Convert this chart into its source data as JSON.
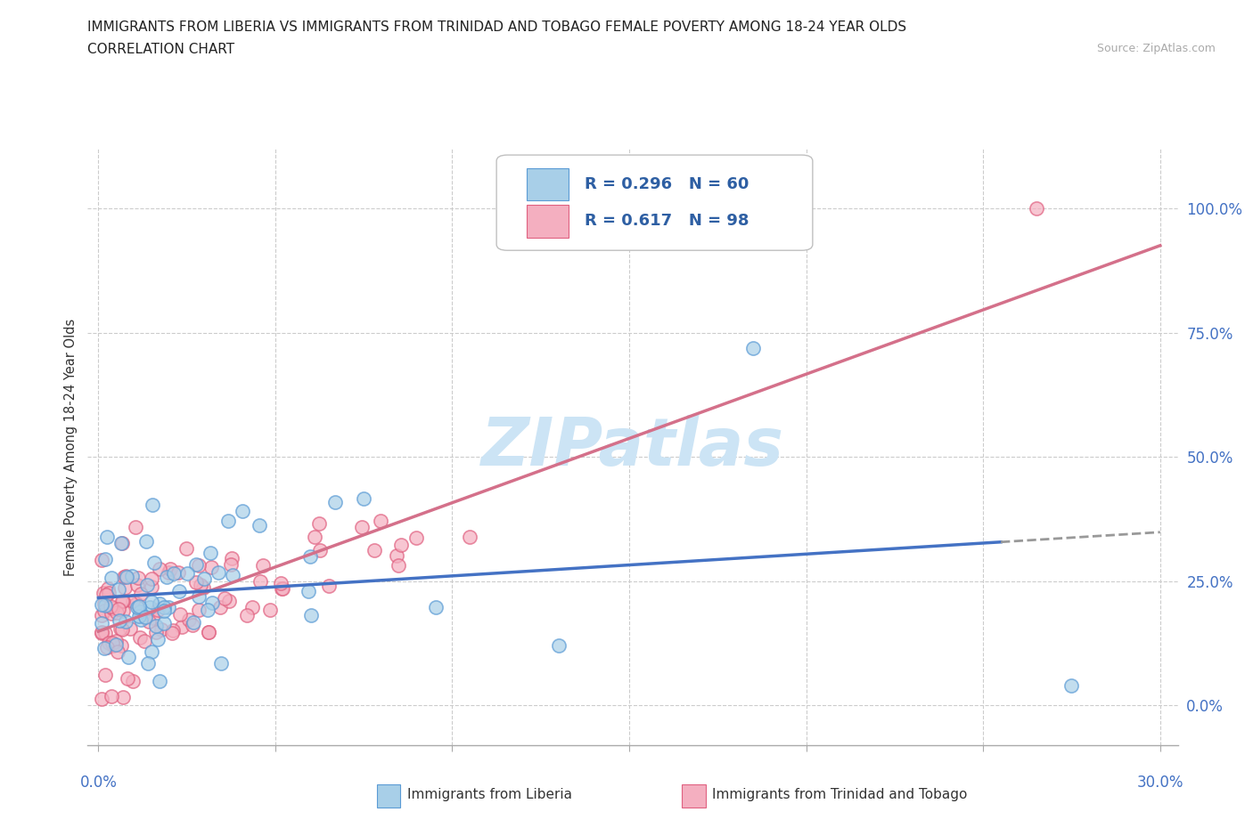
{
  "title_line1": "IMMIGRANTS FROM LIBERIA VS IMMIGRANTS FROM TRINIDAD AND TOBAGO FEMALE POVERTY AMONG 18-24 YEAR OLDS",
  "title_line2": "CORRELATION CHART",
  "source": "Source: ZipAtlas.com",
  "ylabel": "Female Poverty Among 18-24 Year Olds",
  "liberia_color": "#a8cfe8",
  "liberia_edge": "#5b9bd5",
  "trinidad_color": "#f4afc0",
  "trinidad_edge": "#e06080",
  "liberia_line_color": "#4472c4",
  "trinidad_line_color": "#d4708a",
  "legend_text_color": "#2e5fa3",
  "watermark_color": "#cce4f5",
  "grid_color": "#cccccc",
  "axis_label_color": "#4472c4",
  "liberia_R": 0.296,
  "liberia_N": 60,
  "trinidad_R": 0.617,
  "trinidad_N": 98,
  "xlim": [
    -0.003,
    0.305
  ],
  "ylim": [
    -0.08,
    1.12
  ],
  "yticks": [
    0.0,
    0.25,
    0.5,
    0.75,
    1.0
  ],
  "yticklabels": [
    "0.0%",
    "25.0%",
    "50.0%",
    "75.0%",
    "100.0%"
  ],
  "xticks": [
    0.0,
    0.05,
    0.1,
    0.15,
    0.2,
    0.25,
    0.3
  ]
}
